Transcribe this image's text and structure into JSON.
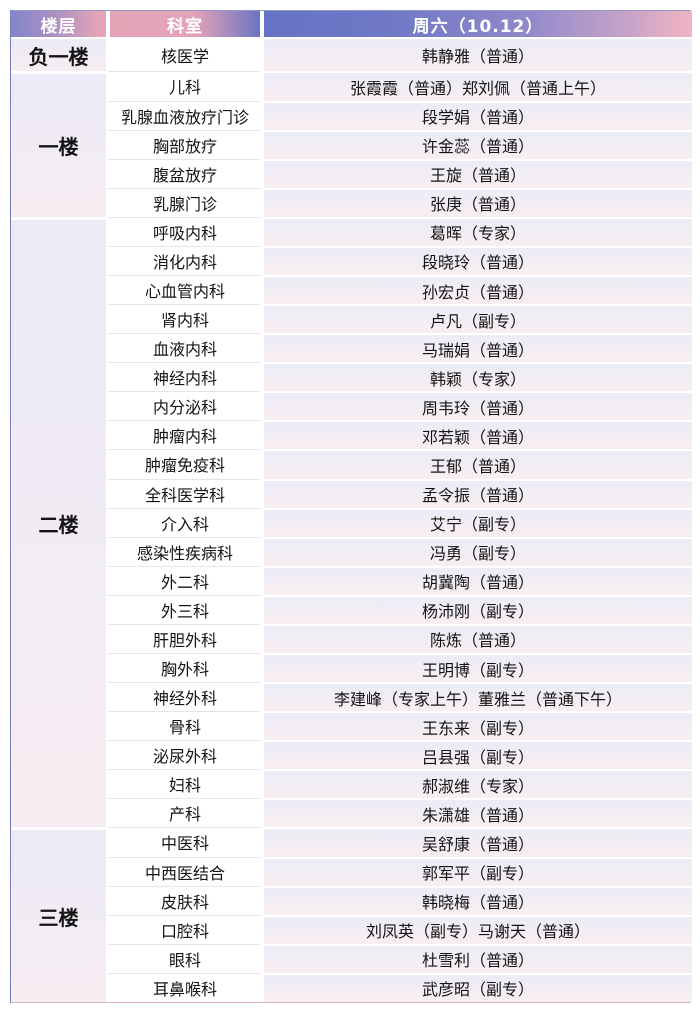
{
  "table": {
    "header": {
      "floor": "楼层",
      "department": "科室",
      "day": "周六（10.12）"
    },
    "floors": [
      {
        "name": "负一楼",
        "rows": [
          {
            "department": "核医学",
            "schedule": "韩静雅（普通）"
          }
        ]
      },
      {
        "name": "一楼",
        "rows": [
          {
            "department": "儿科",
            "schedule": "张霞霞（普通）郑刘佩（普通上午）"
          },
          {
            "department": "乳腺血液放疗门诊",
            "schedule": "段学娟（普通）"
          },
          {
            "department": "胸部放疗",
            "schedule": "许金蕊（普通）"
          },
          {
            "department": "腹盆放疗",
            "schedule": "王旋（普通）"
          },
          {
            "department": "乳腺门诊",
            "schedule": "张庚（普通）"
          }
        ]
      },
      {
        "name": "二楼",
        "rows": [
          {
            "department": "呼吸内科",
            "schedule": "葛晖（专家）"
          },
          {
            "department": "消化内科",
            "schedule": "段晓玲（普通）"
          },
          {
            "department": "心血管内科",
            "schedule": "孙宏贞（普通）"
          },
          {
            "department": "肾内科",
            "schedule": "卢凡（副专）"
          },
          {
            "department": "血液内科",
            "schedule": "马瑞娟（普通）"
          },
          {
            "department": "神经内科",
            "schedule": "韩颖（专家）"
          },
          {
            "department": "内分泌科",
            "schedule": "周韦玲（普通）"
          },
          {
            "department": "肿瘤内科",
            "schedule": "邓若颖（普通）"
          },
          {
            "department": "肿瘤免疫科",
            "schedule": "王郁（普通）"
          },
          {
            "department": "全科医学科",
            "schedule": "孟令振（普通）"
          },
          {
            "department": "介入科",
            "schedule": "艾宁（副专）"
          },
          {
            "department": "感染性疾病科",
            "schedule": "冯勇（副专）"
          },
          {
            "department": "外二科",
            "schedule": "胡冀陶（普通）"
          },
          {
            "department": "外三科",
            "schedule": "杨沛刚（副专）"
          },
          {
            "department": "肝胆外科",
            "schedule": "陈炼（普通）"
          },
          {
            "department": "胸外科",
            "schedule": "王明博（副专）"
          },
          {
            "department": "神经外科",
            "schedule": "李建峰（专家上午）董雅兰（普通下午）"
          },
          {
            "department": "骨科",
            "schedule": "王东来（副专）"
          },
          {
            "department": "泌尿外科",
            "schedule": "吕县强（副专）"
          },
          {
            "department": "妇科",
            "schedule": "郝淑维（专家）"
          },
          {
            "department": "产科",
            "schedule": "朱潇雄（普通）"
          }
        ]
      },
      {
        "name": "三楼",
        "rows": [
          {
            "department": "中医科",
            "schedule": "吴舒康（普通）"
          },
          {
            "department": "中西医结合",
            "schedule": "郭军平（副专）"
          },
          {
            "department": "皮肤科",
            "schedule": "韩晓梅（普通）"
          },
          {
            "department": "口腔科",
            "schedule": "刘凤英（副专）马谢天（普通）"
          },
          {
            "department": "眼科",
            "schedule": "杜雪利（普通）"
          },
          {
            "department": "耳鼻喉科",
            "schedule": "武彦昭（副专）"
          }
        ]
      }
    ]
  },
  "colors": {
    "header_gradient_blue": "#6573c4",
    "header_gradient_pink": "#e5a4b6",
    "header_text": "#ffffff",
    "row_tint_top": "#ebecf6",
    "row_tint_bottom": "#f9eef2",
    "department_bg": "#ffffff",
    "body_text": "#141414"
  }
}
